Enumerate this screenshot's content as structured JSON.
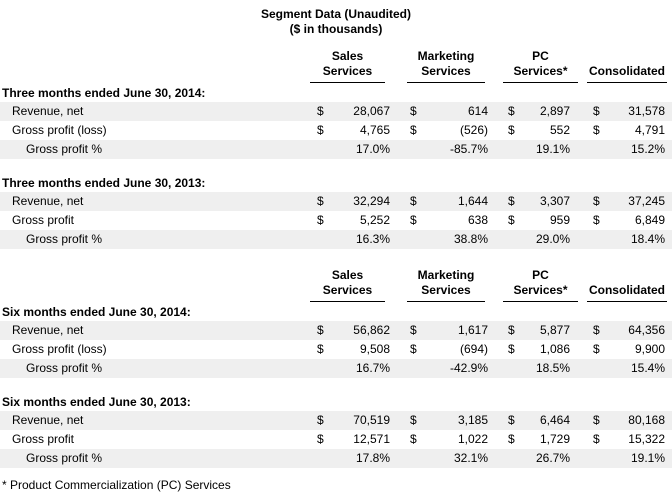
{
  "title": "Segment Data (Unaudited)",
  "subtitle": "($ in thousands)",
  "footnote": "* Product Commercialization (PC) Services",
  "currency_symbol": "$",
  "colors": {
    "row_band": "#efefef",
    "header_rule": "#000000",
    "text": "#000000",
    "background": "#ffffff"
  },
  "columns": [
    {
      "id": "sales-services",
      "line1": "Sales",
      "line2": "Services"
    },
    {
      "id": "marketing-services",
      "line1": "Marketing",
      "line2": "Services"
    },
    {
      "id": "pc-services",
      "line1": "PC",
      "line2": "Services*"
    },
    {
      "id": "consolidated",
      "line1": "",
      "line2": "Consolidated"
    }
  ],
  "blocks": [
    {
      "id": "three-months",
      "sections": [
        {
          "heading": "Three months ended June 30, 2014:",
          "rows": [
            {
              "label": "Revenue, net",
              "indent": 1,
              "shaded": true,
              "currency": true,
              "values": [
                "28,067",
                "614",
                "2,897",
                "31,578"
              ]
            },
            {
              "label": "Gross profit (loss)",
              "indent": 1,
              "shaded": false,
              "currency": true,
              "values": [
                "4,765",
                "(526)",
                "552",
                "4,791"
              ]
            },
            {
              "label": "Gross profit %",
              "indent": 2,
              "shaded": true,
              "currency": false,
              "values": [
                "17.0%",
                "-85.7%",
                "19.1%",
                "15.2%"
              ]
            }
          ]
        },
        {
          "heading": "Three months ended June 30, 2013:",
          "rows": [
            {
              "label": "Revenue, net",
              "indent": 1,
              "shaded": true,
              "currency": true,
              "values": [
                "32,294",
                "1,644",
                "3,307",
                "37,245"
              ]
            },
            {
              "label": "Gross profit",
              "indent": 1,
              "shaded": false,
              "currency": true,
              "values": [
                "5,252",
                "638",
                "959",
                "6,849"
              ]
            },
            {
              "label": "Gross profit %",
              "indent": 2,
              "shaded": true,
              "currency": false,
              "values": [
                "16.3%",
                "38.8%",
                "29.0%",
                "18.4%"
              ]
            }
          ]
        }
      ]
    },
    {
      "id": "six-months",
      "sections": [
        {
          "heading": "Six months ended June 30, 2014:",
          "rows": [
            {
              "label": "Revenue, net",
              "indent": 1,
              "shaded": true,
              "currency": true,
              "values": [
                "56,862",
                "1,617",
                "5,877",
                "64,356"
              ]
            },
            {
              "label": "Gross profit (loss)",
              "indent": 1,
              "shaded": false,
              "currency": true,
              "values": [
                "9,508",
                "(694)",
                "1,086",
                "9,900"
              ]
            },
            {
              "label": "Gross profit %",
              "indent": 2,
              "shaded": true,
              "currency": false,
              "values": [
                "16.7%",
                "-42.9%",
                "18.5%",
                "15.4%"
              ]
            }
          ]
        },
        {
          "heading": "Six months ended June 30, 2013:",
          "rows": [
            {
              "label": "Revenue, net",
              "indent": 1,
              "shaded": true,
              "currency": true,
              "values": [
                "70,519",
                "3,185",
                "6,464",
                "80,168"
              ]
            },
            {
              "label": "Gross profit",
              "indent": 1,
              "shaded": false,
              "currency": true,
              "values": [
                "12,571",
                "1,022",
                "1,729",
                "15,322"
              ]
            },
            {
              "label": "Gross profit %",
              "indent": 2,
              "shaded": true,
              "currency": false,
              "values": [
                "17.8%",
                "32.1%",
                "26.7%",
                "19.1%"
              ]
            }
          ]
        }
      ]
    }
  ]
}
